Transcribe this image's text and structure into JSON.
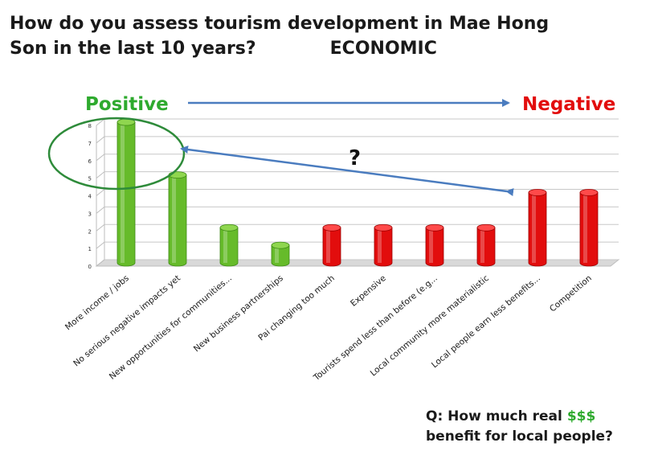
{
  "title_line1": "How do you assess tourism development in Mae Hong",
  "title_line2": "Son in the last 10 years?",
  "category_tag": "ECONOMIC",
  "scale_left_label": "Positive",
  "scale_right_label": "Negative",
  "annotation_mark": "?",
  "question_line1": "Q: How much real",
  "question_money": "$$$",
  "question_line2": "benefit for local people?",
  "colors": {
    "positive": "#66bb2a",
    "negative": "#e20d0d",
    "arrow": "#4a7cbf",
    "circle": "#2e8b3a"
  },
  "chart_data": {
    "type": "bar",
    "categories": [
      "More income / jobs",
      "No serious negative impacts yet",
      "New opportunities for communities...",
      "New business partnerships",
      "Pai changing too much",
      "Expensive",
      "Tourists spend less than before (e.g...",
      "Local community more materialistic",
      "Local people earn less benefits...",
      "Competition"
    ],
    "values": [
      8,
      5,
      2,
      1,
      2,
      2,
      2,
      2,
      4,
      4
    ],
    "bar_groups": [
      "positive",
      "positive",
      "positive",
      "positive",
      "negative",
      "negative",
      "negative",
      "negative",
      "negative",
      "negative"
    ],
    "ylim": [
      0,
      8
    ],
    "yticks": [
      "0",
      "1",
      "2",
      "3",
      "4",
      "5",
      "6",
      "7",
      "8"
    ],
    "grid": true
  }
}
